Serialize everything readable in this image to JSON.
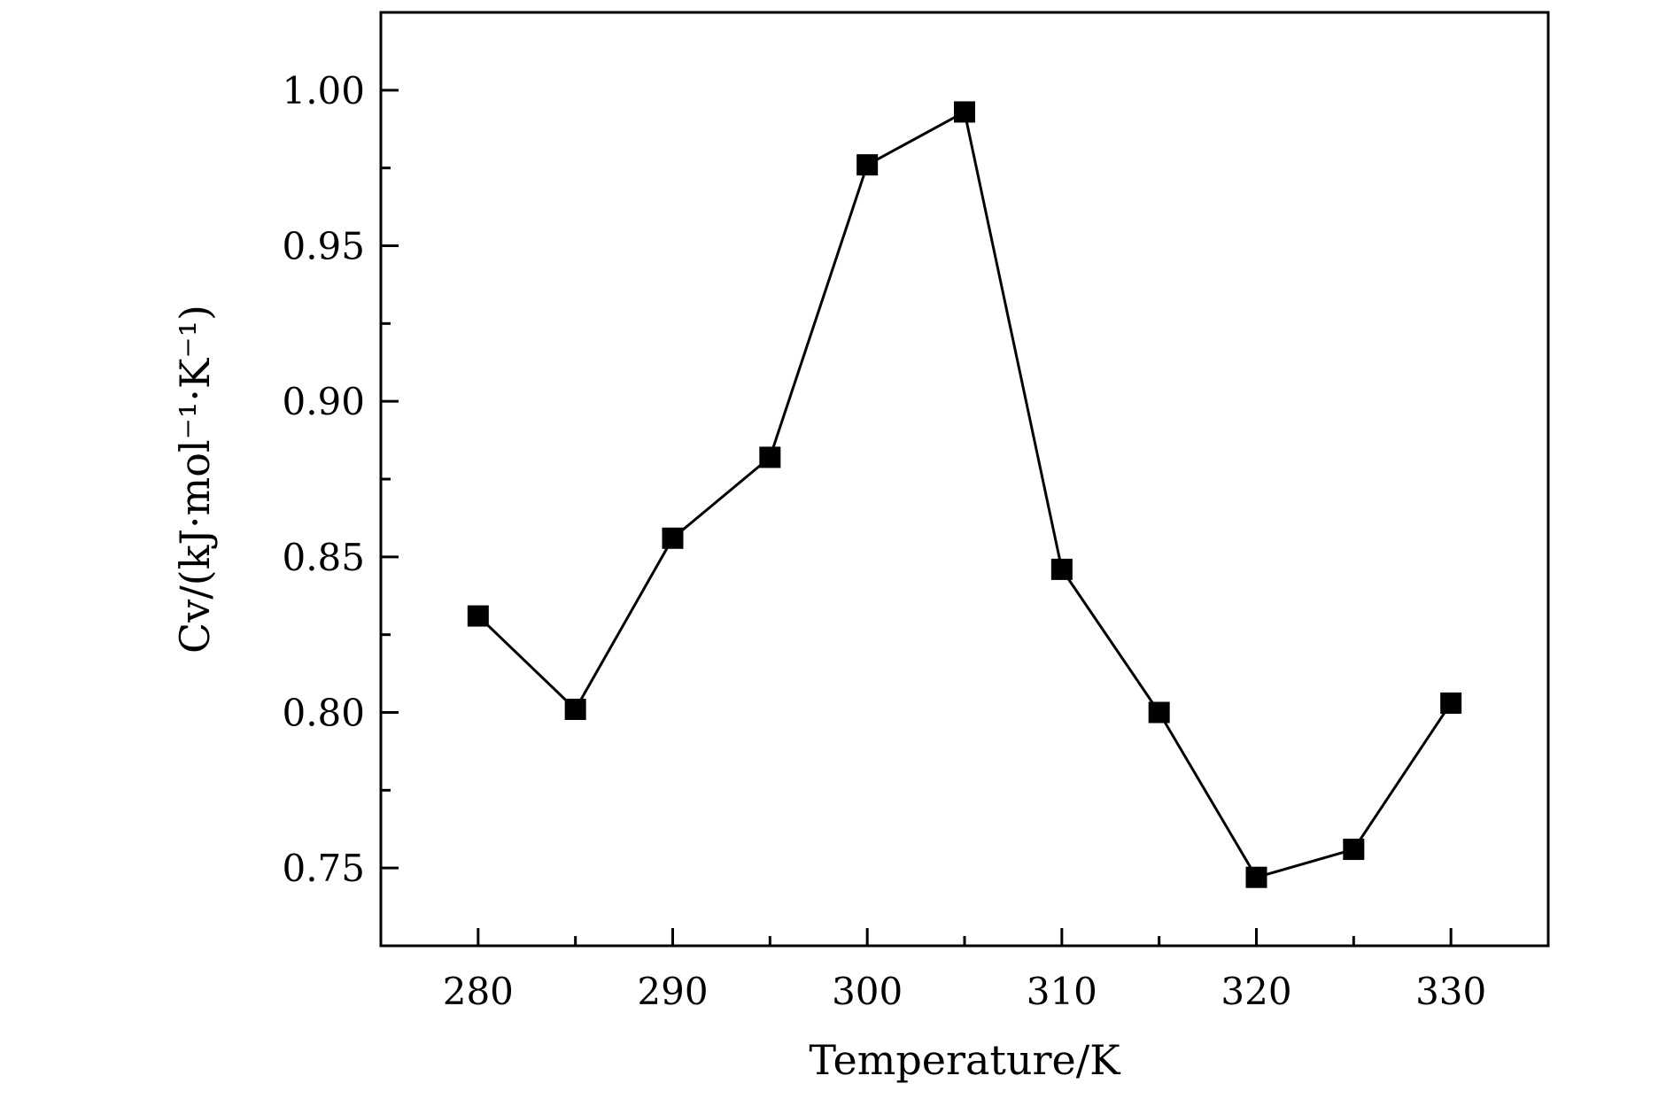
{
  "chart_data": {
    "type": "line",
    "xlabel": "Temperature/K",
    "ylabel": "Cv/(kJ·mol⁻¹·K⁻¹)",
    "xlim": [
      275,
      335
    ],
    "ylim": [
      0.725,
      1.025
    ],
    "xticks": [
      280,
      290,
      300,
      310,
      320,
      330
    ],
    "xtick_labels": [
      "280",
      "290",
      "300",
      "310",
      "320",
      "330"
    ],
    "yticks": [
      0.75,
      0.8,
      0.85,
      0.9,
      0.95,
      1.0
    ],
    "ytick_labels": [
      "0.75",
      "0.80",
      "0.85",
      "0.90",
      "0.95",
      "1.00"
    ],
    "grid": false,
    "legend": "none",
    "series": [
      {
        "marker": "square",
        "color": "#000000",
        "x": [
          280,
          285,
          290,
          295,
          300,
          305,
          310,
          315,
          320,
          325,
          330
        ],
        "y": [
          0.831,
          0.801,
          0.856,
          0.882,
          0.976,
          0.993,
          0.846,
          0.8,
          0.747,
          0.756,
          0.803
        ]
      }
    ]
  }
}
